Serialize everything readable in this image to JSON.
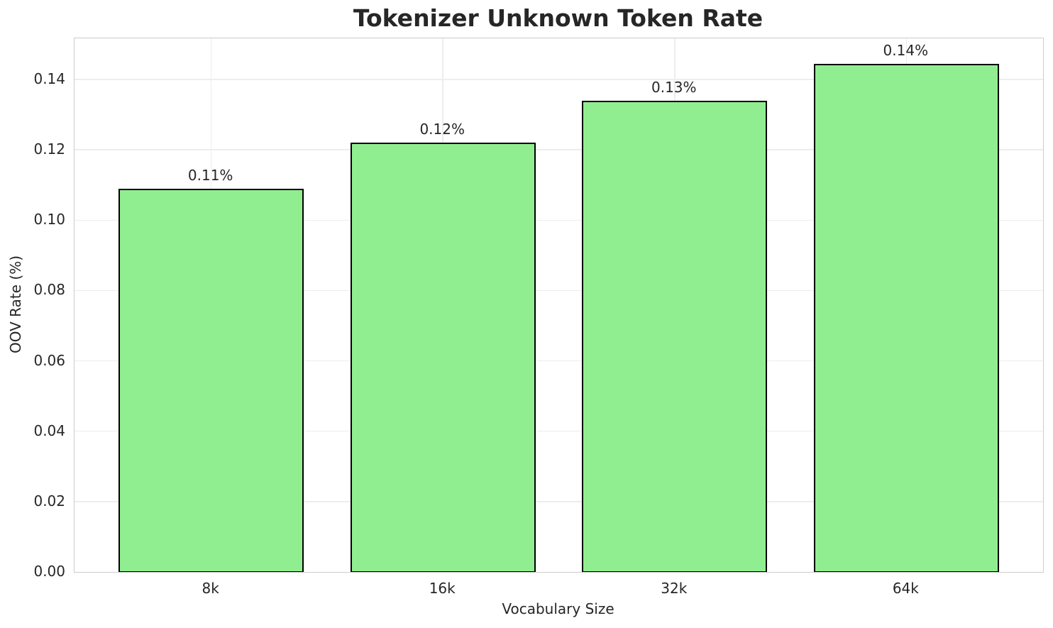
{
  "chart_data": {
    "type": "bar",
    "title": "Tokenizer Unknown Token Rate",
    "xlabel": "Vocabulary Size",
    "ylabel": "OOV Rate (%)",
    "categories": [
      "8k",
      "16k",
      "32k",
      "64k"
    ],
    "values": [
      0.109,
      0.122,
      0.134,
      0.1445
    ],
    "bar_labels": [
      "0.11%",
      "0.12%",
      "0.13%",
      "0.14%"
    ],
    "yticks": [
      0.0,
      0.02,
      0.04,
      0.06,
      0.08,
      0.1,
      0.12,
      0.14
    ],
    "ytick_labels": [
      "0.00",
      "0.02",
      "0.04",
      "0.06",
      "0.08",
      "0.10",
      "0.12",
      "0.14"
    ],
    "ylim": [
      0,
      0.1517
    ],
    "grid": true,
    "legend": "none",
    "bar_width_fraction": 0.8,
    "colors": {
      "bar_fill": "#90EE90",
      "bar_edge": "#000000",
      "grid": "#ededed",
      "spine": "#cccccc",
      "text": "#262626",
      "background": "#ffffff"
    }
  }
}
